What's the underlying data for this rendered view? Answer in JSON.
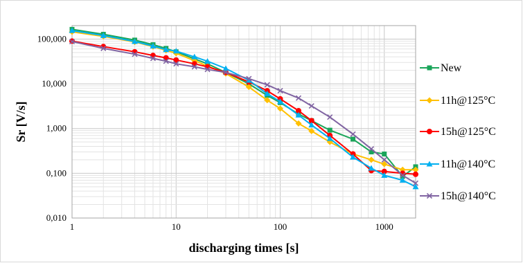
{
  "chart_data": {
    "type": "line",
    "title": "",
    "xlabel": "discharging times [s]",
    "ylabel": "Sr [V/s]",
    "x_scale": "log",
    "y_scale": "log",
    "xlim": [
      1,
      2000
    ],
    "ylim": [
      0.01,
      200
    ],
    "x_ticks": [
      "1",
      "10",
      "100",
      "1000"
    ],
    "y_ticks": [
      "0,010",
      "0,100",
      "1,000",
      "10,000",
      "100,000"
    ],
    "grid": true,
    "legend_position": "right",
    "series": [
      {
        "name": "New",
        "color": "#1aa55a",
        "marker": "square",
        "x": [
          1,
          2,
          4,
          6,
          8,
          10,
          15,
          20,
          30,
          50,
          75,
          100,
          150,
          200,
          300,
          500,
          750,
          1000,
          1500,
          2000
        ],
        "y": [
          165,
          128,
          95,
          75,
          62,
          52,
          36,
          28,
          18,
          10,
          5.5,
          3.8,
          2.1,
          1.5,
          0.92,
          0.58,
          0.3,
          0.27,
          0.085,
          0.14
        ]
      },
      {
        "name": "11h@125°C",
        "color": "#ffc000",
        "marker": "diamond",
        "x": [
          1,
          2,
          4,
          6,
          8,
          10,
          15,
          20,
          30,
          50,
          75,
          100,
          150,
          200,
          300,
          500,
          750,
          1000,
          1500,
          2000
        ],
        "y": [
          145,
          115,
          86,
          68,
          56,
          48,
          33,
          25,
          17,
          8.5,
          4.3,
          2.8,
          1.3,
          0.88,
          0.5,
          0.27,
          0.2,
          0.16,
          0.12,
          0.12
        ]
      },
      {
        "name": "15h@125°C",
        "color": "#ff0000",
        "marker": "circle",
        "x": [
          1,
          2,
          4,
          6,
          8,
          10,
          15,
          20,
          30,
          50,
          75,
          100,
          150,
          200,
          300,
          500,
          750,
          1000,
          1500,
          2000
        ],
        "y": [
          90,
          68,
          52,
          43,
          38,
          34,
          28,
          24,
          18,
          11,
          7,
          4.6,
          2.5,
          1.5,
          0.7,
          0.27,
          0.115,
          0.11,
          0.1,
          0.095
        ]
      },
      {
        "name": "11h@140°C",
        "color": "#00b0f0",
        "marker": "triangle",
        "x": [
          1,
          2,
          4,
          6,
          8,
          10,
          15,
          20,
          30,
          50,
          75,
          100,
          150,
          200,
          300,
          500,
          750,
          1000,
          1500,
          2000
        ],
        "y": [
          155,
          120,
          88,
          70,
          58,
          54,
          40,
          32,
          22,
          12,
          6,
          4,
          2,
          1.2,
          0.6,
          0.23,
          0.13,
          0.09,
          0.07,
          0.05
        ]
      },
      {
        "name": "15h@140°C",
        "color": "#8064a2",
        "marker": "x",
        "x": [
          1,
          2,
          4,
          6,
          8,
          10,
          15,
          20,
          30,
          50,
          75,
          100,
          150,
          200,
          300,
          500,
          750,
          1000,
          1500,
          2000
        ],
        "y": [
          88,
          62,
          46,
          37,
          32,
          28,
          24,
          21,
          18,
          13,
          9.5,
          7,
          4.8,
          3.2,
          1.8,
          0.75,
          0.35,
          0.2,
          0.09,
          0.06
        ]
      }
    ]
  }
}
